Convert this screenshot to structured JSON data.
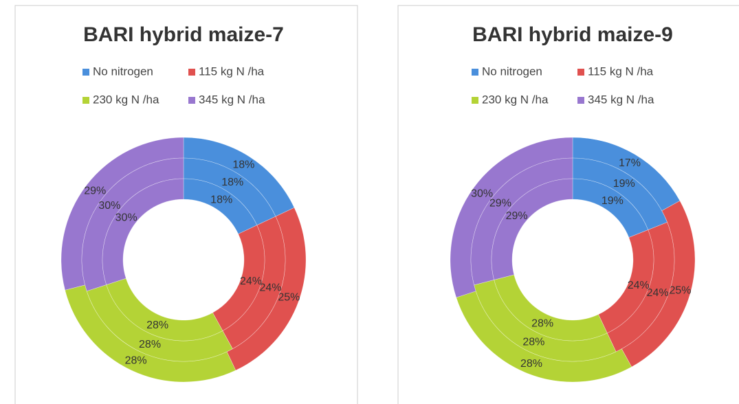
{
  "chart_data": [
    {
      "type": "doughnut",
      "title": "BARI hybrid maize-7",
      "categories": [
        "No nitrogen",
        "115  kg N /ha",
        "230  kg N /ha",
        "345 kg N /ha"
      ],
      "colors": [
        "#4a8fdc",
        "#e0514f",
        "#b4d336",
        "#9877cf"
      ],
      "series": [
        {
          "values": [
            18,
            25,
            28,
            29
          ],
          "value_labels": [
            "18%",
            "25%",
            "28%",
            "29%"
          ]
        },
        {
          "values": [
            18,
            24,
            28,
            30
          ],
          "value_labels": [
            "18%",
            "24%",
            "28%",
            "30%"
          ]
        },
        {
          "values": [
            18,
            24,
            28,
            30
          ],
          "value_labels": [
            "18%",
            "24%",
            "28%",
            "30%"
          ]
        }
      ]
    },
    {
      "type": "doughnut",
      "title": "BARI hybrid maize-9",
      "categories": [
        "No nitrogen",
        "115  kg N /ha",
        "230  kg N /ha",
        "345 kg N /ha"
      ],
      "colors": [
        "#4a8fdc",
        "#e0514f",
        "#b4d336",
        "#9877cf"
      ],
      "series": [
        {
          "values": [
            17,
            25,
            28,
            30
          ],
          "value_labels": [
            "17%",
            "25%",
            "28%",
            "30%"
          ]
        },
        {
          "values": [
            19,
            24,
            28,
            29
          ],
          "value_labels": [
            "19%",
            "24%",
            "28%",
            "29%"
          ]
        },
        {
          "values": [
            19,
            24,
            28,
            29
          ],
          "value_labels": [
            "19%",
            "24%",
            "28%",
            "29%"
          ]
        }
      ]
    }
  ]
}
